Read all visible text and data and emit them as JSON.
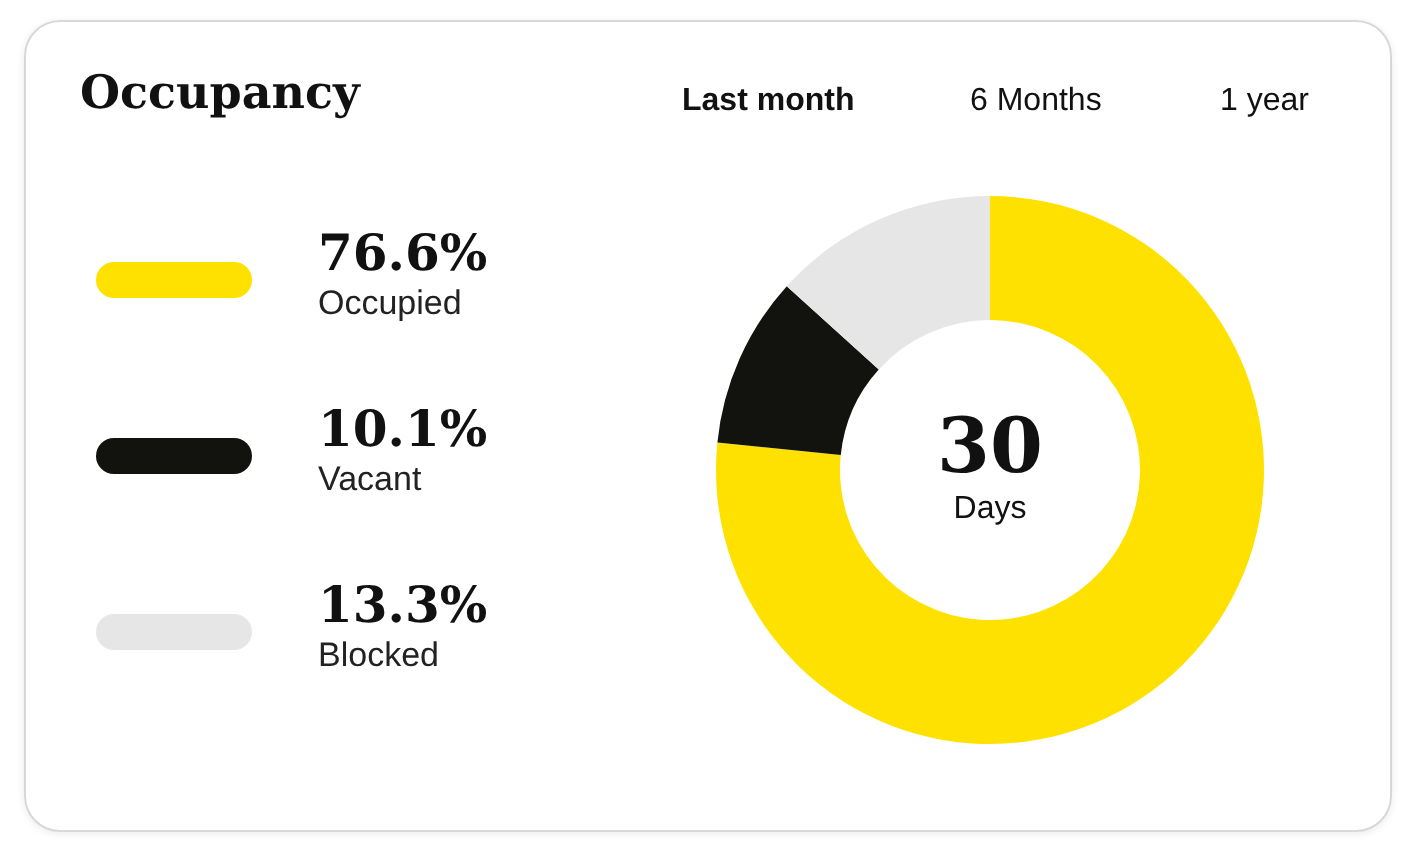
{
  "chart_data": {
    "type": "donut",
    "title": "Occupancy",
    "categories": [
      "Occupied",
      "Vacant",
      "Blocked"
    ],
    "values": [
      76.6,
      10.1,
      13.3
    ],
    "value_labels": [
      "76.6%",
      "10.1%",
      "13.3%"
    ],
    "colors": [
      "#ffe100",
      "#12120e",
      "#e6e6e6"
    ],
    "legend": "left",
    "annotations": [
      "Last month",
      "6 Months",
      "1 year",
      "30",
      "Days"
    ]
  }
}
